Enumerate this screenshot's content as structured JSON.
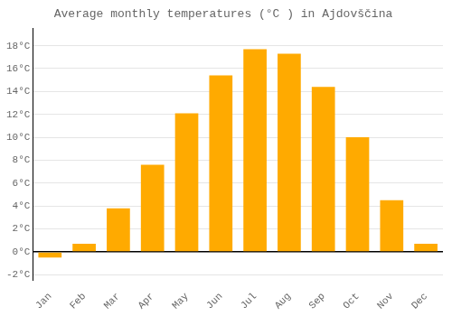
{
  "chart_data": {
    "type": "bar",
    "title": "Average monthly temperatures (°C ) in Ajdovščina",
    "categories": [
      "Jan",
      "Feb",
      "Mar",
      "Apr",
      "May",
      "Jun",
      "Jul",
      "Aug",
      "Sep",
      "Oct",
      "Nov",
      "Dec"
    ],
    "values": [
      -0.5,
      0.7,
      3.8,
      7.6,
      12.1,
      15.4,
      17.7,
      17.3,
      14.4,
      10.0,
      4.5,
      0.7
    ],
    "color": "#FFAA00",
    "ylim": [
      -2.5,
      19.5
    ],
    "yticks": [
      {
        "value": -2,
        "label": "-2°C"
      },
      {
        "value": 0,
        "label": "0°C"
      },
      {
        "value": 2,
        "label": "2°C"
      },
      {
        "value": 4,
        "label": "4°C"
      },
      {
        "value": 6,
        "label": "6°C"
      },
      {
        "value": 8,
        "label": "8°C"
      },
      {
        "value": 10,
        "label": "10°C"
      },
      {
        "value": 12,
        "label": "12°C"
      },
      {
        "value": 14,
        "label": "14°C"
      },
      {
        "value": 16,
        "label": "16°C"
      },
      {
        "value": 18,
        "label": "18°C"
      }
    ],
    "grid": true
  }
}
